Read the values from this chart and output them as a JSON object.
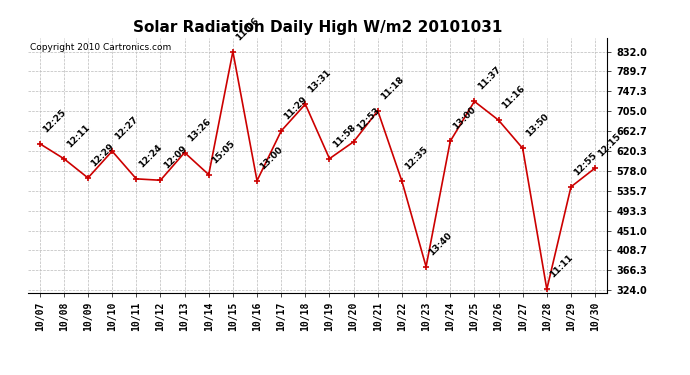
{
  "title": "Solar Radiation Daily High W/m2 20101031",
  "copyright": "Copyright 2010 Cartronics.com",
  "dates": [
    "10/07",
    "10/08",
    "10/09",
    "10/10",
    "10/11",
    "10/12",
    "10/13",
    "10/14",
    "10/15",
    "10/16",
    "10/17",
    "10/18",
    "10/19",
    "10/20",
    "10/21",
    "10/22",
    "10/23",
    "10/24",
    "10/25",
    "10/26",
    "10/27",
    "10/28",
    "10/29",
    "10/30"
  ],
  "values": [
    636,
    604,
    563,
    620,
    561,
    558,
    617,
    570,
    832,
    557,
    663,
    720,
    604,
    640,
    706,
    556,
    374,
    641,
    726,
    686,
    626,
    326,
    544,
    584
  ],
  "labels": [
    "12:25",
    "12:11",
    "12:29",
    "12:27",
    "12:24",
    "12:09",
    "13:26",
    "15:05",
    "11:06",
    "13:00",
    "11:29",
    "13:31",
    "11:58",
    "12:53",
    "11:18",
    "12:35",
    "13:40",
    "13:00",
    "11:37",
    "11:16",
    "13:50",
    "11:11",
    "12:55",
    "12:15"
  ],
  "ymin": 324.0,
  "ymax": 832.0,
  "yticks": [
    324.0,
    366.3,
    408.7,
    451.0,
    493.3,
    535.7,
    578.0,
    620.3,
    662.7,
    705.0,
    747.3,
    789.7,
    832.0
  ],
  "line_color": "#cc0000",
  "marker_color": "#cc0000",
  "bg_color": "#ffffff",
  "grid_color": "#bbbbbb",
  "title_fontsize": 11,
  "label_fontsize": 6.5,
  "tick_fontsize": 7,
  "copyright_fontsize": 6.5
}
